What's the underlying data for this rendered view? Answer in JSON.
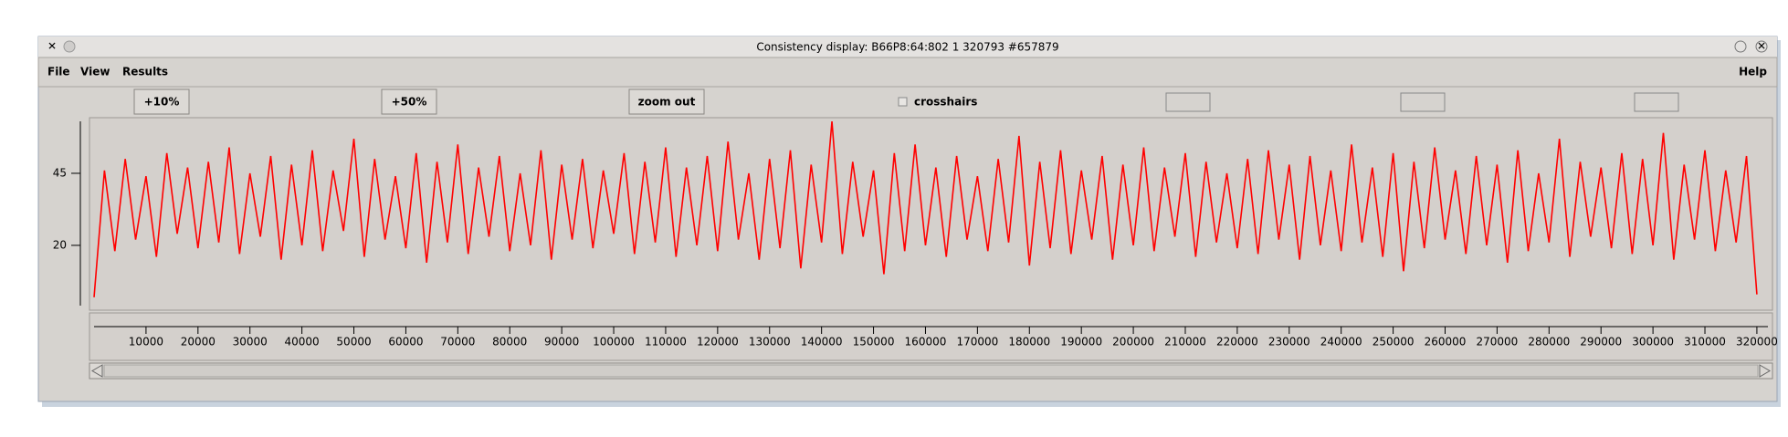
{
  "window": {
    "title": "Consistency display: B66P8:64:802 1 320793 #657879"
  },
  "menu": [
    "File",
    "View",
    "Results"
  ],
  "help": "Help",
  "toolbar": {
    "buttons": [
      "+10%",
      "+50%",
      "zoom out"
    ],
    "checkbox": "crosshairs"
  },
  "chart_data": {
    "type": "line",
    "color": "#ff0000",
    "x": [
      0,
      2000,
      4000,
      6000,
      8000,
      10000,
      12000,
      14000,
      16000,
      18000,
      20000,
      22000,
      24000,
      26000,
      28000,
      30000,
      32000,
      34000,
      36000,
      38000,
      40000,
      42000,
      44000,
      46000,
      48000,
      50000,
      52000,
      54000,
      56000,
      58000,
      60000,
      62000,
      64000,
      66000,
      68000,
      70000,
      72000,
      74000,
      76000,
      78000,
      80000,
      82000,
      84000,
      86000,
      88000,
      90000,
      92000,
      94000,
      96000,
      98000,
      100000,
      102000,
      104000,
      106000,
      108000,
      110000,
      112000,
      114000,
      116000,
      118000,
      120000,
      122000,
      124000,
      126000,
      128000,
      130000,
      132000,
      134000,
      136000,
      138000,
      140000,
      142000,
      144000,
      146000,
      148000,
      150000,
      152000,
      154000,
      156000,
      158000,
      160000,
      162000,
      164000,
      166000,
      168000,
      170000,
      172000,
      174000,
      176000,
      178000,
      180000,
      182000,
      184000,
      186000,
      188000,
      190000,
      192000,
      194000,
      196000,
      198000,
      200000,
      202000,
      204000,
      206000,
      208000,
      210000,
      212000,
      214000,
      216000,
      218000,
      220000,
      222000,
      224000,
      226000,
      228000,
      230000,
      232000,
      234000,
      236000,
      238000,
      240000,
      242000,
      244000,
      246000,
      248000,
      250000,
      252000,
      254000,
      256000,
      258000,
      260000,
      262000,
      264000,
      266000,
      268000,
      270000,
      272000,
      274000,
      276000,
      278000,
      280000,
      282000,
      284000,
      286000,
      288000,
      290000,
      292000,
      294000,
      296000,
      298000,
      300000,
      302000,
      304000,
      306000,
      308000,
      310000,
      312000,
      314000,
      316000,
      318000,
      320000
    ],
    "values": [
      2,
      46,
      18,
      50,
      22,
      44,
      16,
      52,
      24,
      47,
      19,
      49,
      21,
      54,
      17,
      45,
      23,
      51,
      15,
      48,
      20,
      53,
      18,
      46,
      25,
      57,
      16,
      50,
      22,
      44,
      19,
      52,
      14,
      49,
      21,
      55,
      17,
      47,
      23,
      51,
      18,
      45,
      20,
      53,
      15,
      48,
      22,
      50,
      19,
      46,
      24,
      52,
      17,
      49,
      21,
      54,
      16,
      47,
      20,
      51,
      18,
      56,
      22,
      45,
      15,
      50,
      19,
      53,
      12,
      48,
      21,
      63,
      17,
      49,
      23,
      46,
      10,
      52,
      18,
      55,
      20,
      47,
      16,
      51,
      22,
      44,
      18,
      50,
      21,
      58,
      13,
      49,
      19,
      53,
      17,
      46,
      22,
      51,
      15,
      48,
      20,
      54,
      18,
      47,
      23,
      52,
      16,
      49,
      21,
      45,
      19,
      50,
      17,
      53,
      22,
      48,
      15,
      51,
      20,
      46,
      18,
      55,
      21,
      47,
      16,
      52,
      11,
      49,
      19,
      54,
      22,
      46,
      17,
      51,
      20,
      48,
      14,
      53,
      18,
      45,
      21,
      57,
      16,
      49,
      23,
      47,
      19,
      52,
      17,
      50,
      20,
      59,
      15,
      48,
      22,
      53,
      18,
      46,
      21,
      51,
      3
    ],
    "xlim": [
      0,
      323000
    ],
    "ylim": [
      -2.5,
      64.3
    ],
    "xticks": [
      10000,
      20000,
      30000,
      40000,
      50000,
      60000,
      70000,
      80000,
      90000,
      100000,
      110000,
      120000,
      130000,
      140000,
      150000,
      160000,
      170000,
      180000,
      190000,
      200000,
      210000,
      220000,
      230000,
      240000,
      250000,
      260000,
      270000,
      280000,
      290000,
      300000,
      310000,
      320000
    ],
    "yticks": [
      20,
      45
    ]
  }
}
